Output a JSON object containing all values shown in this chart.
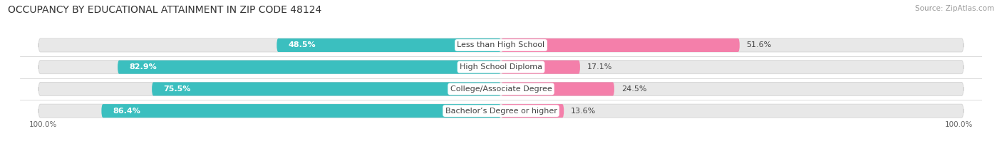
{
  "title": "OCCUPANCY BY EDUCATIONAL ATTAINMENT IN ZIP CODE 48124",
  "source": "Source: ZipAtlas.com",
  "categories": [
    "Less than High School",
    "High School Diploma",
    "College/Associate Degree",
    "Bachelor’s Degree or higher"
  ],
  "owner_pct": [
    48.5,
    82.9,
    75.5,
    86.4
  ],
  "renter_pct": [
    51.6,
    17.1,
    24.5,
    13.6
  ],
  "owner_color": "#3bbfbf",
  "renter_color": "#f47faa",
  "bg_color": "#ffffff",
  "bar_bg_color": "#e8e8e8",
  "bar_bg_shadow": "#d0d0d0",
  "title_fontsize": 10,
  "label_fontsize": 8,
  "pct_fontsize": 8,
  "source_fontsize": 7.5,
  "legend_fontsize": 8,
  "left_axis_label": "100.0%",
  "right_axis_label": "100.0%"
}
